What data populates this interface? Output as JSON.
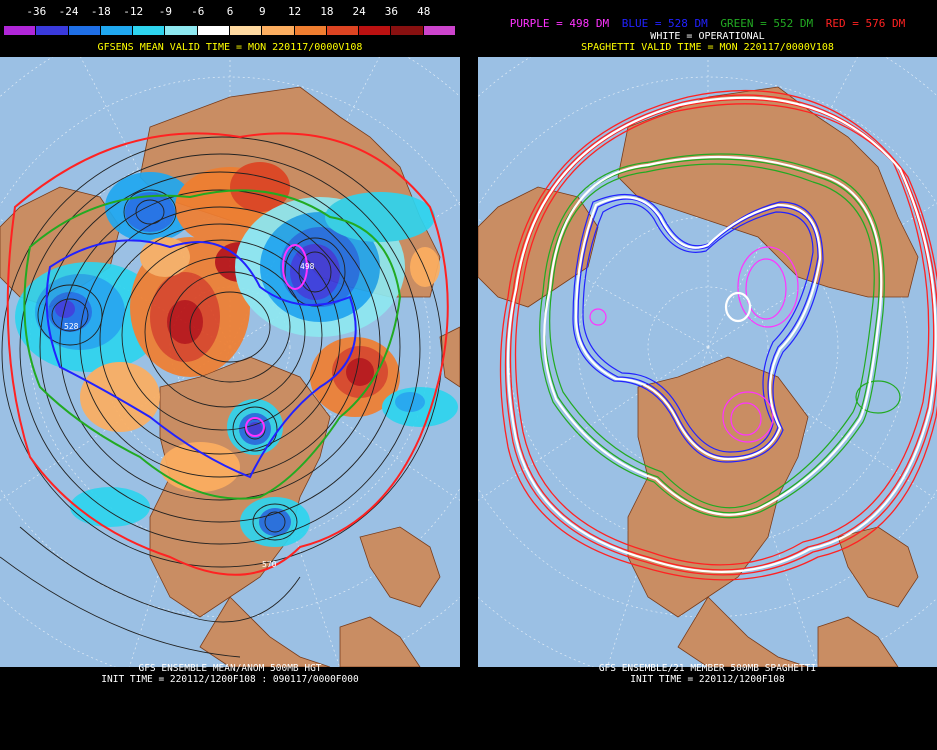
{
  "left": {
    "colorbar": {
      "labels": [
        "-36",
        "-24",
        "-18",
        "-12",
        "-9",
        "-6",
        "6",
        "9",
        "12",
        "18",
        "24",
        "36",
        "48"
      ],
      "colors": [
        "#b026d8",
        "#3a3adc",
        "#1f6fe6",
        "#20a8f0",
        "#2ed4ee",
        "#8ee8f0",
        "#ffffff",
        "#ffd9a0",
        "#fcae60",
        "#f07e30",
        "#dd4422",
        "#bb1111",
        "#881010",
        "#cc44cc"
      ]
    },
    "title": "GFSENS MEAN VALID TIME = MON 220117/0000V108",
    "footer_line1": "GFS ENSEMBLE MEAN/ANOM 500MB HGT",
    "footer_line2": "INIT TIME = 220112/1200F108 : 090117/0000F000",
    "contour_labels": [
      "498",
      "528",
      "570"
    ]
  },
  "right": {
    "legend": [
      {
        "text": "PURPLE = 498 DM",
        "color": "#ff33ff"
      },
      {
        "text": "BLUE = 528 DM",
        "color": "#2222ff"
      },
      {
        "text": "GREEN = 552 DM",
        "color": "#22aa22"
      },
      {
        "text": "RED = 576 DM",
        "color": "#ff2222"
      }
    ],
    "operational": "WHITE = OPERATIONAL",
    "title": "SPAGHETTI VALID TIME = MON 220117/0000V108",
    "footer_line1": "GFS ENSEMBLE/21 MEMBER 500MB SPAGHETTI",
    "footer_line2": "INIT TIME = 220112/1200F108"
  }
}
